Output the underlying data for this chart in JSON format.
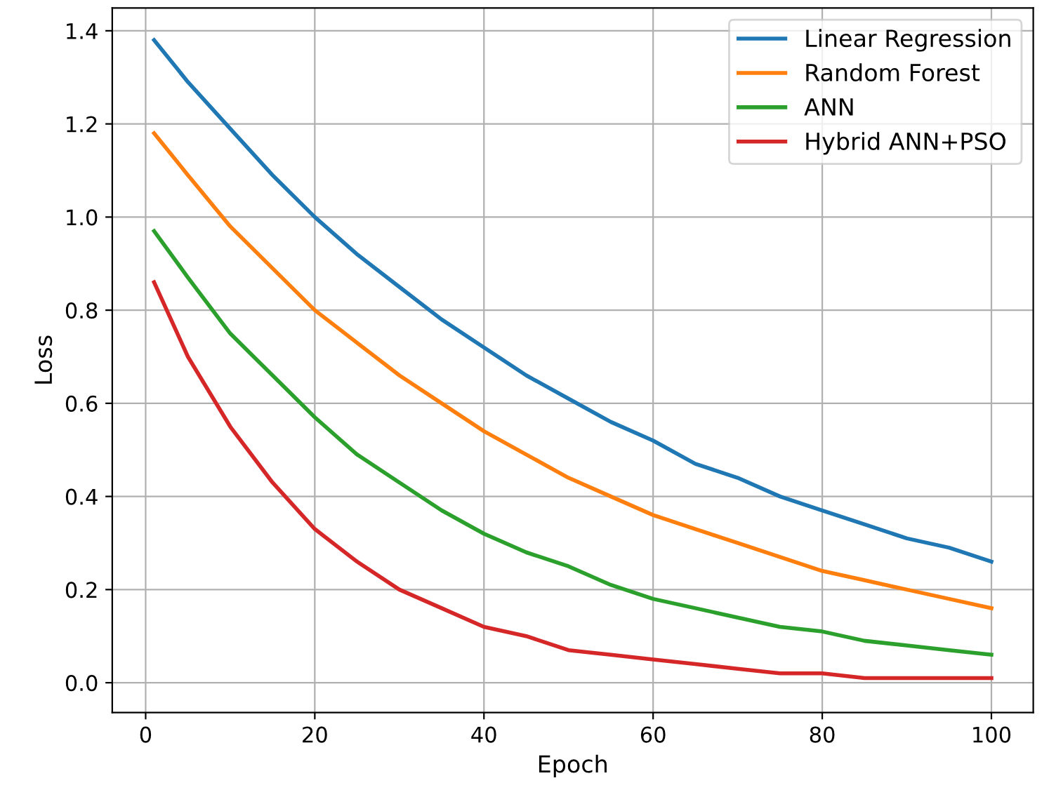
{
  "chart_data": {
    "type": "line",
    "xlabel": "Epoch",
    "ylabel": "Loss",
    "x": [
      1,
      5,
      10,
      15,
      20,
      25,
      30,
      35,
      40,
      45,
      50,
      55,
      60,
      65,
      70,
      75,
      80,
      85,
      90,
      95,
      100
    ],
    "xlim": [
      -3.95,
      104.95
    ],
    "xticks": [
      0,
      20,
      40,
      60,
      80,
      100
    ],
    "ylim": [
      -0.064,
      1.449
    ],
    "yticks": [
      {
        "value": 0,
        "label": "0.0"
      },
      {
        "value": 0.2,
        "label": "0.2"
      },
      {
        "value": 0.4,
        "label": "0.4"
      },
      {
        "value": 0.6,
        "label": "0.6"
      },
      {
        "value": 0.8,
        "label": "0.8"
      },
      {
        "value": 1.0,
        "label": "1.0"
      },
      {
        "value": 1.2,
        "label": "1.2"
      },
      {
        "value": 1.4,
        "label": "1.4"
      }
    ],
    "grid": true,
    "legend": "top right",
    "marker": "none",
    "line_style": "solid",
    "series": [
      {
        "name": "Linear Regression",
        "color": "#1f77b4",
        "values": [
          1.38,
          1.29,
          1.19,
          1.09,
          1.0,
          0.92,
          0.85,
          0.78,
          0.72,
          0.66,
          0.61,
          0.56,
          0.52,
          0.47,
          0.44,
          0.4,
          0.37,
          0.34,
          0.31,
          0.29,
          0.26
        ]
      },
      {
        "name": "Random Forest",
        "color": "#ff7f0e",
        "values": [
          1.18,
          1.09,
          0.98,
          0.89,
          0.8,
          0.73,
          0.66,
          0.6,
          0.54,
          0.49,
          0.44,
          0.4,
          0.36,
          0.33,
          0.3,
          0.27,
          0.24,
          0.22,
          0.2,
          0.18,
          0.16
        ]
      },
      {
        "name": "ANN",
        "color": "#2ca02c",
        "values": [
          0.97,
          0.87,
          0.75,
          0.66,
          0.57,
          0.49,
          0.43,
          0.37,
          0.32,
          0.28,
          0.25,
          0.21,
          0.18,
          0.16,
          0.14,
          0.12,
          0.11,
          0.09,
          0.08,
          0.07,
          0.06
        ]
      },
      {
        "name": "Hybrid ANN+PSO",
        "color": "#d62728",
        "values": [
          0.86,
          0.7,
          0.55,
          0.43,
          0.33,
          0.26,
          0.2,
          0.16,
          0.12,
          0.1,
          0.07,
          0.06,
          0.05,
          0.04,
          0.03,
          0.02,
          0.02,
          0.01,
          0.01,
          0.01,
          0.01
        ]
      }
    ]
  }
}
